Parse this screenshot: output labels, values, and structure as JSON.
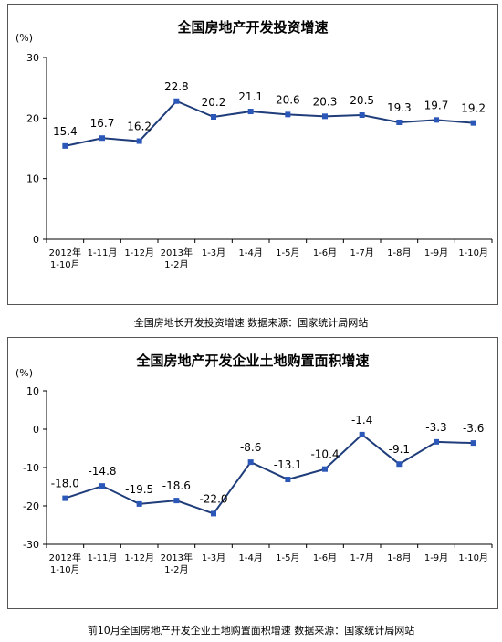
{
  "chart_data": [
    {
      "type": "line",
      "title": "全国房地产开发投资增速",
      "unit": "(%)",
      "categories": [
        "2012年\n1-10月",
        "1-11月",
        "1-12月",
        "2013年\n1-2月",
        "1-3月",
        "1-4月",
        "1-5月",
        "1-6月",
        "1-7月",
        "1-8月",
        "1-9月",
        "1-10月"
      ],
      "series": [
        {
          "values": [
            15.4,
            16.7,
            16.2,
            22.8,
            20.2,
            21.1,
            20.6,
            20.3,
            20.5,
            19.3,
            19.7,
            19.2
          ]
        }
      ],
      "data_labels": [
        "15.4",
        "16.7",
        "16.2",
        "22.8",
        "20.2",
        "21.1",
        "20.6",
        "20.3",
        "20.5",
        "19.3",
        "19.7",
        "19.2"
      ],
      "ylim": [
        0,
        30
      ],
      "yticks": [
        "0",
        "10",
        "20",
        "30"
      ],
      "ytick_values": [
        0,
        10,
        20,
        30
      ],
      "grid": false,
      "line_color": "#1f3d7a",
      "marker_color": "#2b57b8",
      "caption": "全国房地长开发投资增速  数据来源：国家统计局网站"
    },
    {
      "type": "line",
      "title": "全国房地产开发企业土地购置面积增速",
      "unit": "(%)",
      "categories": [
        "2012年\n1-10月",
        "1-11月",
        "1-12月",
        "2013年\n1-2月",
        "1-3月",
        "1-4月",
        "1-5月",
        "1-6月",
        "1-7月",
        "1-8月",
        "1-9月",
        "1-10月"
      ],
      "series": [
        {
          "values": [
            -18.0,
            -14.8,
            -19.5,
            -18.6,
            -22.0,
            -8.6,
            -13.1,
            -10.4,
            -1.4,
            -9.1,
            -3.3,
            -3.6
          ]
        }
      ],
      "data_labels": [
        "-18.0",
        "-14.8",
        "-19.5",
        "-18.6",
        "-22.0",
        "-8.6",
        "-13.1",
        "-10.4",
        "-1.4",
        "-9.1",
        "-3.3",
        "-3.6"
      ],
      "ylim": [
        -30,
        10
      ],
      "yticks": [
        "-30",
        "-20",
        "-10",
        "0",
        "10"
      ],
      "ytick_values": [
        -30,
        -20,
        -10,
        0,
        10
      ],
      "grid": false,
      "line_color": "#1f3d7a",
      "marker_color": "#2b57b8",
      "caption": "前10月全国房地产开发企业土地购置面积增速  数据来源：国家统计局网站"
    }
  ]
}
